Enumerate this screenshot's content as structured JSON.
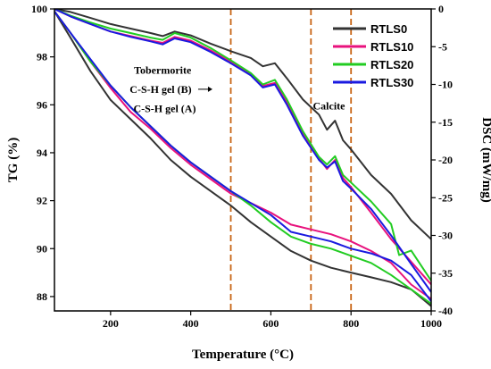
{
  "chart_data": {
    "type": "line",
    "xlabel": "Temperature (°C)",
    "ylabel": "TG (%)",
    "y2label": "DSC (mW/mg)",
    "xlim": [
      60,
      1000
    ],
    "ylim": [
      87.4,
      100
    ],
    "y2lim": [
      -40,
      0
    ],
    "xticks": [
      200,
      400,
      600,
      800,
      1000
    ],
    "yticks": [
      88,
      90,
      92,
      94,
      96,
      98,
      100
    ],
    "y2ticks": [
      0,
      -5,
      -10,
      -15,
      -20,
      -25,
      -30,
      -35,
      -40
    ],
    "grid": false,
    "legend_position": "top-right",
    "vlines": [
      500,
      700,
      800
    ],
    "colors": {
      "RTLS0": "#333333",
      "RTLS10": "#e8127d",
      "RTLS20": "#22cc22",
      "RTLS30": "#1a1ae0",
      "vline": "#c86414"
    },
    "annotations": [
      {
        "text": "Tobermorite",
        "x": 330,
        "y": 97.3
      },
      {
        "text": "C-S-H gel (B)",
        "x": 325,
        "y": 96.5
      },
      {
        "text": "C-S-H gel (A)",
        "x": 335,
        "y": 95.7
      },
      {
        "text": "Calcite",
        "x": 745,
        "y": 95.8
      }
    ],
    "tg_series": [
      {
        "name": "RTLS0",
        "x": [
          60,
          100,
          150,
          200,
          250,
          300,
          350,
          400,
          450,
          500,
          550,
          600,
          650,
          700,
          750,
          800,
          850,
          900,
          950,
          1000
        ],
        "y": [
          99.9,
          98.8,
          97.4,
          96.2,
          95.4,
          94.6,
          93.7,
          93.0,
          92.4,
          91.8,
          91.1,
          90.5,
          89.9,
          89.5,
          89.2,
          89.0,
          88.8,
          88.6,
          88.3,
          87.6
        ]
      },
      {
        "name": "RTLS10",
        "x": [
          60,
          100,
          150,
          200,
          250,
          300,
          350,
          400,
          450,
          500,
          550,
          600,
          650,
          700,
          750,
          800,
          850,
          900,
          950,
          1000
        ],
        "y": [
          99.9,
          99.0,
          97.8,
          96.7,
          95.7,
          95.0,
          94.2,
          93.5,
          92.9,
          92.3,
          91.9,
          91.5,
          91.0,
          90.8,
          90.6,
          90.3,
          89.9,
          89.4,
          88.5,
          87.9
        ]
      },
      {
        "name": "RTLS20",
        "x": [
          60,
          100,
          150,
          200,
          250,
          300,
          350,
          400,
          450,
          500,
          550,
          600,
          650,
          700,
          750,
          800,
          850,
          900,
          950,
          1000
        ],
        "y": [
          99.9,
          99.0,
          97.8,
          96.8,
          95.9,
          95.1,
          94.3,
          93.6,
          93.0,
          92.4,
          91.8,
          91.1,
          90.5,
          90.2,
          90.0,
          89.7,
          89.4,
          88.9,
          88.3,
          87.7
        ]
      },
      {
        "name": "RTLS30",
        "x": [
          60,
          100,
          150,
          200,
          250,
          300,
          350,
          400,
          450,
          500,
          550,
          600,
          650,
          700,
          750,
          800,
          850,
          900,
          950,
          1000
        ],
        "y": [
          99.9,
          99.0,
          97.9,
          96.8,
          95.9,
          95.1,
          94.3,
          93.6,
          93.0,
          92.4,
          91.9,
          91.4,
          90.7,
          90.5,
          90.3,
          90.0,
          89.8,
          89.5,
          88.9,
          87.8
        ]
      }
    ],
    "dsc_series": [
      {
        "name": "RTLS0",
        "x": [
          60,
          100,
          150,
          200,
          250,
          300,
          330,
          360,
          400,
          450,
          500,
          550,
          580,
          610,
          640,
          680,
          720,
          740,
          760,
          780,
          800,
          850,
          900,
          950,
          1000
        ],
        "y": [
          0,
          -0.4,
          -1.2,
          -2.0,
          -2.6,
          -3.2,
          -3.6,
          -3.0,
          -3.5,
          -4.6,
          -5.6,
          -6.5,
          -7.6,
          -7.2,
          -9.2,
          -12.0,
          -14.0,
          -16.0,
          -14.8,
          -17.4,
          -18.6,
          -22.0,
          -24.5,
          -28.0,
          -30.5
        ]
      },
      {
        "name": "RTLS10",
        "x": [
          60,
          100,
          150,
          200,
          250,
          300,
          330,
          360,
          400,
          450,
          500,
          550,
          580,
          610,
          640,
          680,
          720,
          740,
          760,
          780,
          800,
          850,
          900,
          950,
          1000
        ],
        "y": [
          0,
          -1.0,
          -2.0,
          -3.0,
          -3.6,
          -4.2,
          -4.5,
          -3.7,
          -4.2,
          -5.5,
          -7.0,
          -8.6,
          -10.2,
          -9.8,
          -12.4,
          -16.5,
          -19.8,
          -21.2,
          -20.0,
          -22.4,
          -23.6,
          -27.0,
          -30.5,
          -33.5,
          -36.5
        ]
      },
      {
        "name": "RTLS20",
        "x": [
          60,
          100,
          150,
          200,
          250,
          300,
          330,
          360,
          400,
          450,
          500,
          550,
          580,
          610,
          640,
          680,
          720,
          740,
          760,
          780,
          800,
          850,
          900,
          920,
          950,
          1000
        ],
        "y": [
          0,
          -0.9,
          -1.8,
          -2.6,
          -3.2,
          -3.8,
          -4.1,
          -3.2,
          -3.8,
          -5.2,
          -6.8,
          -8.5,
          -10.0,
          -9.4,
          -12.0,
          -16.2,
          -19.6,
          -20.6,
          -19.5,
          -22.0,
          -23.0,
          -25.5,
          -28.5,
          -32.6,
          -32.0,
          -36.0
        ]
      },
      {
        "name": "RTLS30",
        "x": [
          60,
          100,
          150,
          200,
          250,
          300,
          330,
          360,
          400,
          450,
          500,
          550,
          580,
          610,
          640,
          680,
          720,
          740,
          760,
          780,
          800,
          850,
          900,
          950,
          1000
        ],
        "y": [
          0,
          -1.0,
          -2.0,
          -3.0,
          -3.7,
          -4.3,
          -4.7,
          -3.9,
          -4.4,
          -5.7,
          -7.2,
          -8.8,
          -10.4,
          -10.0,
          -12.7,
          -16.8,
          -20.0,
          -21.0,
          -20.2,
          -22.8,
          -23.8,
          -26.5,
          -30.0,
          -33.8,
          -37.5
        ]
      }
    ]
  }
}
